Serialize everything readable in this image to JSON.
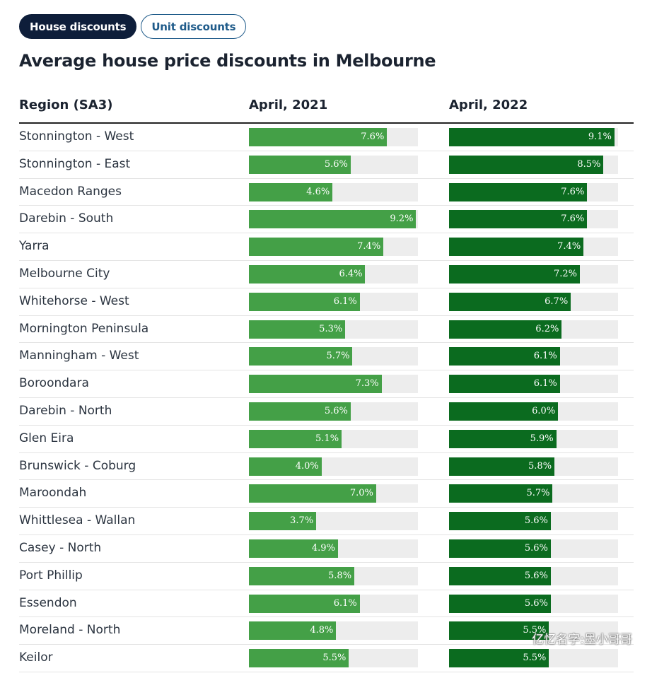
{
  "tabs": {
    "house_label": "House discounts",
    "unit_label": "Unit discounts"
  },
  "colors": {
    "bar_2021": "#44a047",
    "bar_2022": "#0b6b1f",
    "track": "#ededed",
    "active_tab": "#0e1e3a"
  },
  "watermark": "亿忆名字:墨小哥哥",
  "chart_data": {
    "type": "table",
    "title": "Average house price discounts in Melbourne",
    "columns": [
      "Region (SA3)",
      "April, 2021",
      "April, 2022"
    ],
    "unit": "%",
    "xlim": [
      0,
      9.3
    ],
    "rows": [
      {
        "region": "Stonnington - West",
        "v2021": 7.6,
        "v2022": 9.1
      },
      {
        "region": "Stonnington - East",
        "v2021": 5.6,
        "v2022": 8.5
      },
      {
        "region": "Macedon Ranges",
        "v2021": 4.6,
        "v2022": 7.6
      },
      {
        "region": "Darebin - South",
        "v2021": 9.2,
        "v2022": 7.6
      },
      {
        "region": "Yarra",
        "v2021": 7.4,
        "v2022": 7.4
      },
      {
        "region": "Melbourne City",
        "v2021": 6.4,
        "v2022": 7.2
      },
      {
        "region": "Whitehorse - West",
        "v2021": 6.1,
        "v2022": 6.7
      },
      {
        "region": "Mornington Peninsula",
        "v2021": 5.3,
        "v2022": 6.2
      },
      {
        "region": "Manningham - West",
        "v2021": 5.7,
        "v2022": 6.1
      },
      {
        "region": "Boroondara",
        "v2021": 7.3,
        "v2022": 6.1
      },
      {
        "region": "Darebin - North",
        "v2021": 5.6,
        "v2022": 6.0
      },
      {
        "region": "Glen Eira",
        "v2021": 5.1,
        "v2022": 5.9
      },
      {
        "region": "Brunswick - Coburg",
        "v2021": 4.0,
        "v2022": 5.8
      },
      {
        "region": "Maroondah",
        "v2021": 7.0,
        "v2022": 5.7
      },
      {
        "region": "Whittlesea - Wallan",
        "v2021": 3.7,
        "v2022": 5.6
      },
      {
        "region": "Casey - North",
        "v2021": 4.9,
        "v2022": 5.6
      },
      {
        "region": "Port Phillip",
        "v2021": 5.8,
        "v2022": 5.6
      },
      {
        "region": "Essendon",
        "v2021": 6.1,
        "v2022": 5.6
      },
      {
        "region": "Moreland - North",
        "v2021": 4.8,
        "v2022": 5.5
      },
      {
        "region": "Keilor",
        "v2021": 5.5,
        "v2022": 5.5
      }
    ]
  }
}
